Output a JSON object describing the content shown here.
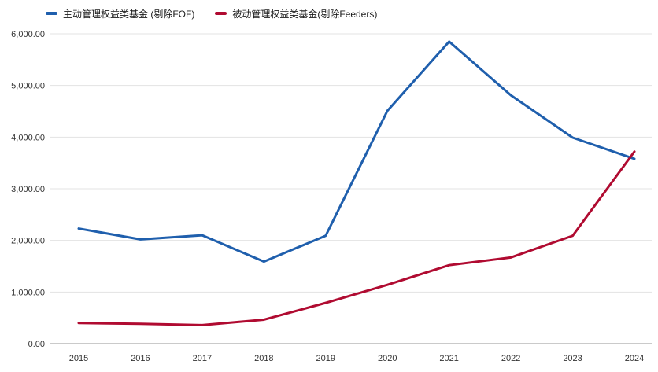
{
  "chart_data": {
    "type": "line",
    "title": "",
    "xlabel": "",
    "ylabel": "",
    "x_labels": [
      "2015",
      "2016",
      "2017",
      "2018",
      "2019",
      "2020",
      "2021",
      "2022",
      "2023",
      "2024"
    ],
    "series": [
      {
        "name": "主动管理权益类基金 (剔除FOF)",
        "color": "#1f5fad",
        "values": [
          2230,
          2020,
          2100,
          1590,
          2090,
          4510,
          5850,
          4810,
          3990,
          3580
        ]
      },
      {
        "name": "被动管理权益类基金(剔除Feeders)",
        "color": "#b00b31",
        "values": [
          400,
          385,
          360,
          465,
          790,
          1140,
          1520,
          1670,
          2090,
          3720
        ]
      }
    ],
    "ylim": [
      0,
      6000
    ],
    "yticks": [
      0,
      1000,
      2000,
      3000,
      4000,
      5000,
      6000
    ],
    "ytick_labels": [
      "0.00",
      "1,000.00",
      "2,000.00",
      "3,000.00",
      "4,000.00",
      "5,000.00",
      "6,000.00"
    ],
    "grid": true,
    "legend_position": "top-left",
    "colors": {
      "grid": "#e3e3e3",
      "axis": "#969696",
      "tick_text": "#333333"
    }
  }
}
